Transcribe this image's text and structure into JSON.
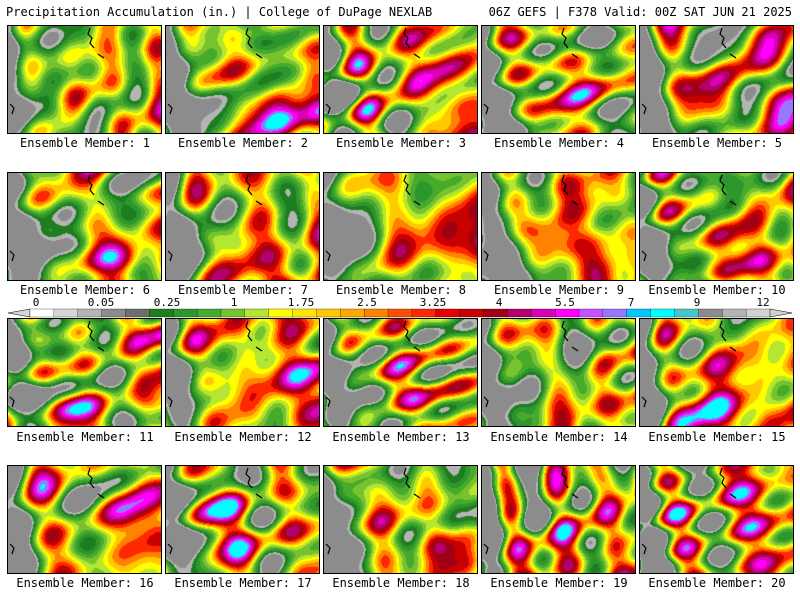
{
  "header": {
    "left": "Precipitation Accumulation (in.) | College of DuPage NEXLAB",
    "right": "06Z GEFS | F378 Valid: 00Z SAT JUN 21 2025"
  },
  "members": [
    {
      "label": "Ensemble Member: 1"
    },
    {
      "label": "Ensemble Member: 2"
    },
    {
      "label": "Ensemble Member: 3"
    },
    {
      "label": "Ensemble Member: 4"
    },
    {
      "label": "Ensemble Member: 5"
    },
    {
      "label": "Ensemble Member: 6"
    },
    {
      "label": "Ensemble Member: 7"
    },
    {
      "label": "Ensemble Member: 8"
    },
    {
      "label": "Ensemble Member: 9"
    },
    {
      "label": "Ensemble Member: 10"
    },
    {
      "label": "Ensemble Member: 11"
    },
    {
      "label": "Ensemble Member: 12"
    },
    {
      "label": "Ensemble Member: 13"
    },
    {
      "label": "Ensemble Member: 14"
    },
    {
      "label": "Ensemble Member: 15"
    },
    {
      "label": "Ensemble Member: 16"
    },
    {
      "label": "Ensemble Member: 17"
    },
    {
      "label": "Ensemble Member: 18"
    },
    {
      "label": "Ensemble Member: 19"
    },
    {
      "label": "Ensemble Member: 20"
    }
  ],
  "colorbar": {
    "tick_labels": [
      "0",
      "0.05",
      "0.25",
      "1",
      "1.75",
      "2.5",
      "3.25",
      "4",
      "5.5",
      "7",
      "9",
      "12"
    ],
    "colors": [
      "#ffffff",
      "#d6d6d6",
      "#b4b4b4",
      "#8c8c8c",
      "#6e6e6e",
      "#1e7d1e",
      "#2d962d",
      "#46aa2d",
      "#78c32d",
      "#b4e632",
      "#ffff00",
      "#ffe600",
      "#ffc800",
      "#ffaa00",
      "#ff8200",
      "#ff5000",
      "#ff2800",
      "#e60000",
      "#c80000",
      "#a00014",
      "#b4006e",
      "#dc00b4",
      "#ff00ff",
      "#c850ff",
      "#9678ff",
      "#00c8ff",
      "#00ffff",
      "#46c8c8",
      "#8c8c8c",
      "#b4b4b4",
      "#d2d2d2"
    ]
  }
}
